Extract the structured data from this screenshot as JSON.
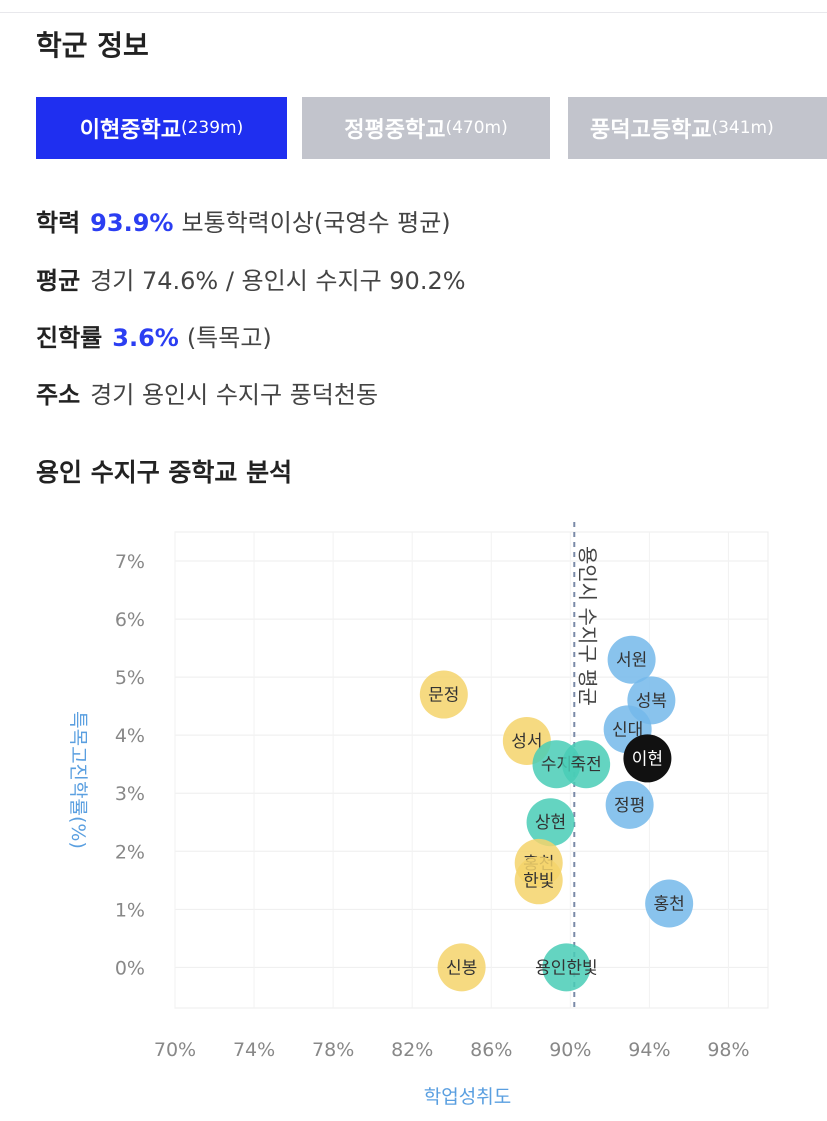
{
  "section_title": "학군 정보",
  "tabs": [
    {
      "name": "이현중학교",
      "dist": "(239m)",
      "active": true
    },
    {
      "name": "정평중학교",
      "dist": "(470m)",
      "active": false
    },
    {
      "name": "풍덕고등학교",
      "dist": "(341m)",
      "active": false
    }
  ],
  "info": {
    "academic": {
      "label": "학력",
      "value": "93.9%",
      "text": "보통학력이상(국영수 평균)"
    },
    "average": {
      "label": "평균",
      "text": "경기 74.6% / 용인시 수지구 90.2%"
    },
    "advance": {
      "label": "진학률",
      "value": "3.6%",
      "text": "(특목고)"
    },
    "address": {
      "label": "주소",
      "text": "경기 용인시 수지구 풍덕천동"
    }
  },
  "chart_title": "용인 수지구 중학교 분석",
  "chart_data": {
    "type": "scatter",
    "xlabel": "학업성취도",
    "ylabel": "특목고진학률(%)",
    "xlim": [
      70,
      100
    ],
    "ylim": [
      -0.7,
      7.5
    ],
    "x_ticks": [
      "70%",
      "74%",
      "78%",
      "82%",
      "86%",
      "90%",
      "94%",
      "98%"
    ],
    "y_ticks": [
      "0%",
      "1%",
      "2%",
      "3%",
      "4%",
      "5%",
      "6%",
      "7%"
    ],
    "reference_line": {
      "x": 90.2,
      "label": "용인시 수지구 평균"
    },
    "colors": {
      "blue": "#74b9ea",
      "yellow": "#f5d36b",
      "teal": "#49cdb6",
      "black": "#111111"
    },
    "points": [
      {
        "name": "서원",
        "x": 93.1,
        "y": 5.3,
        "color": "blue"
      },
      {
        "name": "성복",
        "x": 94.1,
        "y": 4.6,
        "color": "blue"
      },
      {
        "name": "신대",
        "x": 92.9,
        "y": 4.1,
        "color": "blue"
      },
      {
        "name": "문정",
        "x": 83.6,
        "y": 4.7,
        "color": "yellow"
      },
      {
        "name": "성서",
        "x": 87.8,
        "y": 3.9,
        "color": "yellow"
      },
      {
        "name": "수지",
        "x": 89.3,
        "y": 3.5,
        "color": "teal"
      },
      {
        "name": "죽전",
        "x": 90.8,
        "y": 3.5,
        "color": "teal"
      },
      {
        "name": "이현",
        "x": 93.9,
        "y": 3.6,
        "color": "black"
      },
      {
        "name": "정평",
        "x": 93.0,
        "y": 2.8,
        "color": "blue"
      },
      {
        "name": "상현",
        "x": 89.0,
        "y": 2.5,
        "color": "teal"
      },
      {
        "name": "홍천",
        "x": 88.4,
        "y": 1.8,
        "color": "yellow"
      },
      {
        "name": "한빛",
        "x": 88.4,
        "y": 1.5,
        "color": "yellow"
      },
      {
        "name": "홍천",
        "x": 95.0,
        "y": 1.1,
        "color": "blue"
      },
      {
        "name": "신봉",
        "x": 84.5,
        "y": 0.0,
        "color": "yellow"
      },
      {
        "name": "용인한빛",
        "x": 89.8,
        "y": 0.0,
        "color": "teal"
      }
    ]
  }
}
